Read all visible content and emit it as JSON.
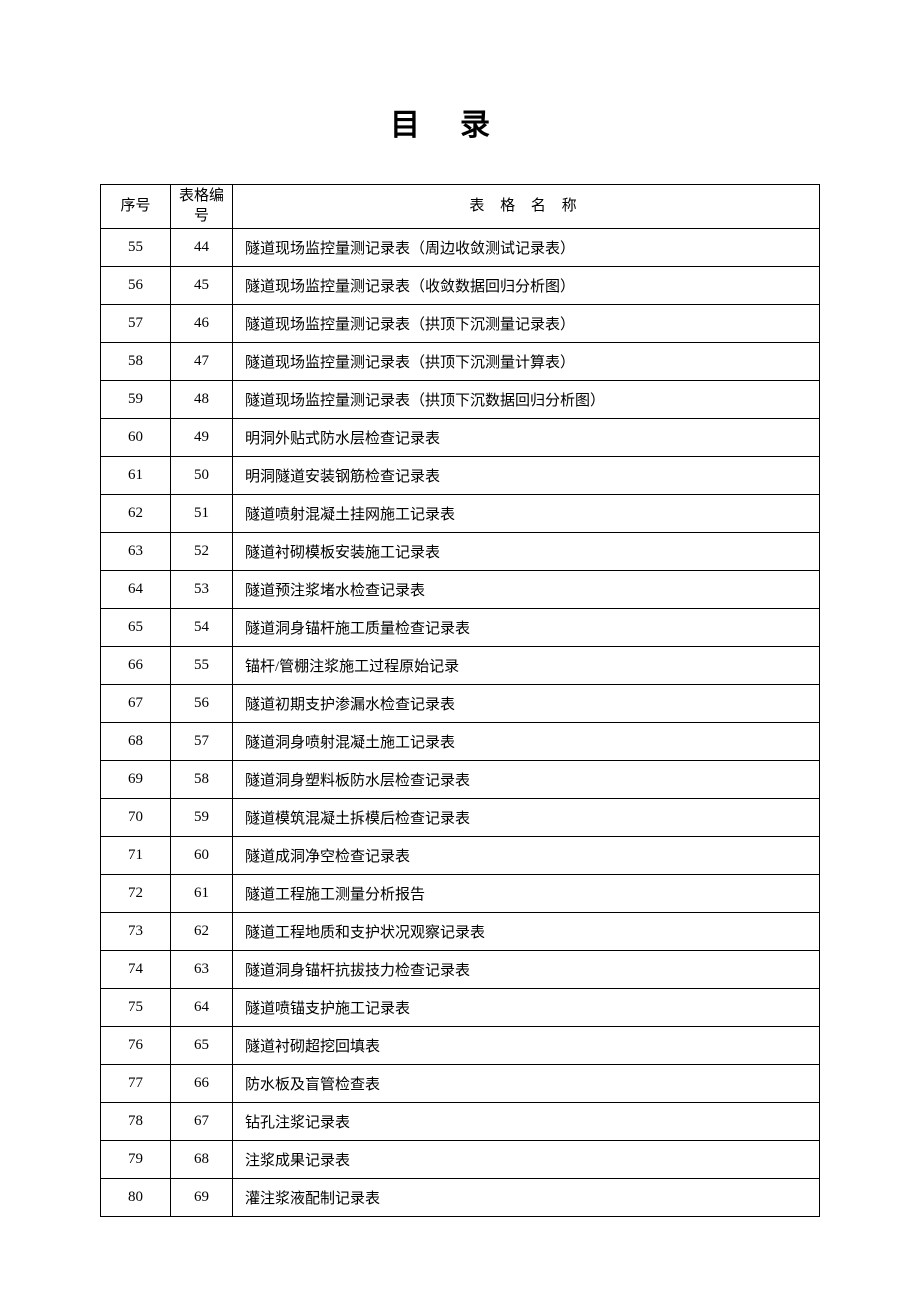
{
  "title": "目录",
  "table": {
    "headers": {
      "seq": "序号",
      "formno": "表格编号",
      "name": "表 格 名 称"
    },
    "rows": [
      {
        "seq": "55",
        "formno": "44",
        "name": "隧道现场监控量测记录表（周边收敛测试记录表）"
      },
      {
        "seq": "56",
        "formno": "45",
        "name": "隧道现场监控量测记录表（收敛数据回归分析图）"
      },
      {
        "seq": "57",
        "formno": "46",
        "name": "隧道现场监控量测记录表（拱顶下沉测量记录表）"
      },
      {
        "seq": "58",
        "formno": "47",
        "name": "隧道现场监控量测记录表（拱顶下沉测量计算表）"
      },
      {
        "seq": "59",
        "formno": "48",
        "name": "隧道现场监控量测记录表（拱顶下沉数据回归分析图）"
      },
      {
        "seq": "60",
        "formno": "49",
        "name": "明洞外贴式防水层检查记录表"
      },
      {
        "seq": "61",
        "formno": "50",
        "name": "明洞隧道安装钢筋检查记录表"
      },
      {
        "seq": "62",
        "formno": "51",
        "name": "隧道喷射混凝土挂网施工记录表"
      },
      {
        "seq": "63",
        "formno": "52",
        "name": "隧道衬砌模板安装施工记录表"
      },
      {
        "seq": "64",
        "formno": "53",
        "name": "隧道预注浆堵水检查记录表"
      },
      {
        "seq": "65",
        "formno": "54",
        "name": "隧道洞身锚杆施工质量检查记录表"
      },
      {
        "seq": "66",
        "formno": "55",
        "name": "锚杆/管棚注浆施工过程原始记录"
      },
      {
        "seq": "67",
        "formno": "56",
        "name": "隧道初期支护渗漏水检查记录表"
      },
      {
        "seq": "68",
        "formno": "57",
        "name": "隧道洞身喷射混凝土施工记录表"
      },
      {
        "seq": "69",
        "formno": "58",
        "name": "隧道洞身塑料板防水层检查记录表"
      },
      {
        "seq": "70",
        "formno": "59",
        "name": "隧道模筑混凝土拆模后检查记录表"
      },
      {
        "seq": "71",
        "formno": "60",
        "name": "隧道成洞净空检查记录表"
      },
      {
        "seq": "72",
        "formno": "61",
        "name": "隧道工程施工测量分析报告"
      },
      {
        "seq": "73",
        "formno": "62",
        "name": "隧道工程地质和支护状况观察记录表"
      },
      {
        "seq": "74",
        "formno": "63",
        "name": "隧道洞身锚杆抗拔技力检查记录表"
      },
      {
        "seq": "75",
        "formno": "64",
        "name": "隧道喷锚支护施工记录表"
      },
      {
        "seq": "76",
        "formno": "65",
        "name": "隧道衬砌超挖回填表"
      },
      {
        "seq": "77",
        "formno": "66",
        "name": "防水板及盲管检查表"
      },
      {
        "seq": "78",
        "formno": "67",
        "name": "钻孔注浆记录表"
      },
      {
        "seq": "79",
        "formno": "68",
        "name": "注浆成果记录表"
      },
      {
        "seq": "80",
        "formno": "69",
        "name": "灌注浆液配制记录表"
      }
    ]
  }
}
